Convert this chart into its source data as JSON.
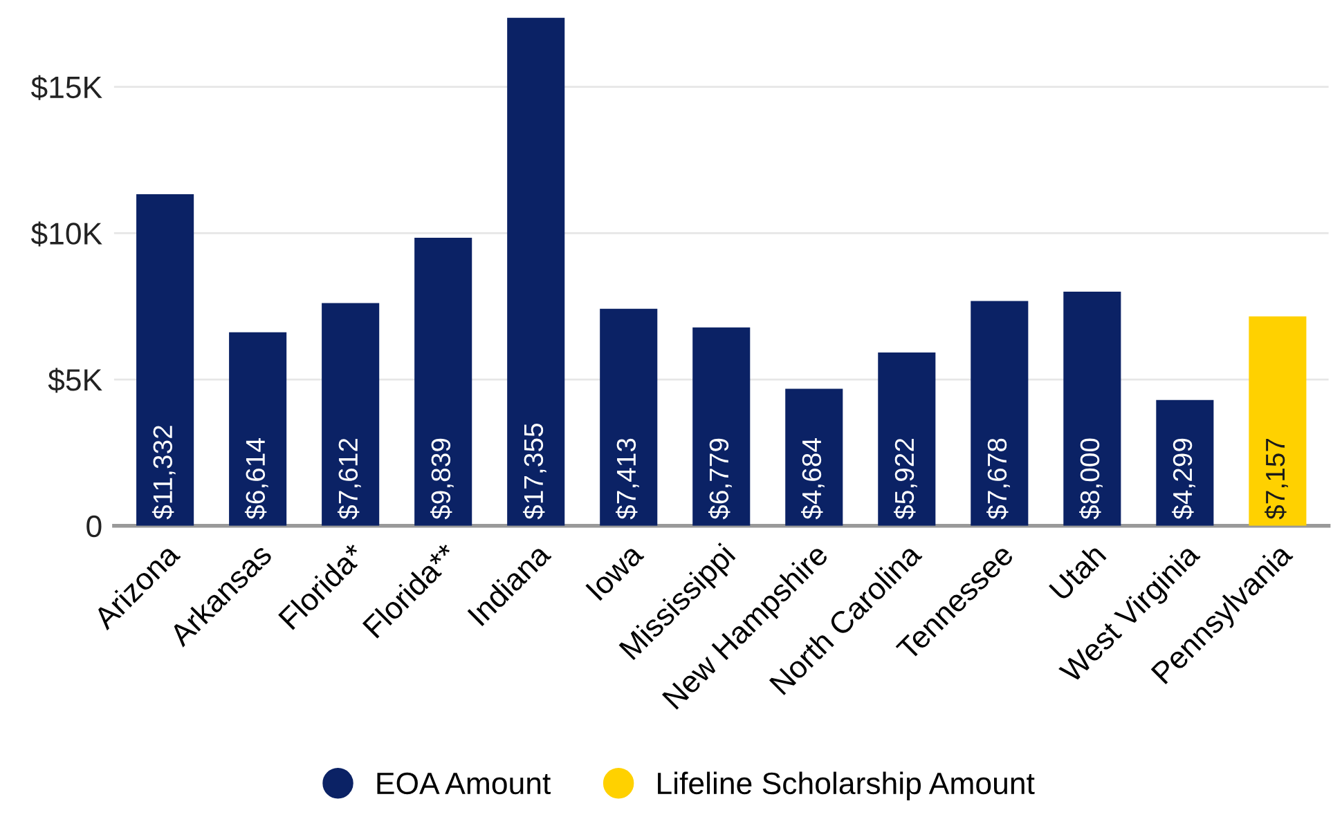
{
  "chart_data": {
    "type": "bar",
    "categories": [
      "Arizona",
      "Arkansas",
      "Florida*",
      "Florida**",
      "Indiana",
      "Iowa",
      "Mississippi",
      "New Hampshire",
      "North Carolina",
      "Tennessee",
      "Utah",
      "West Virginia",
      "Pennsylvania"
    ],
    "series": [
      {
        "name": "EOA Amount",
        "color": "#0b2265",
        "values": [
          11332,
          6614,
          7612,
          9839,
          17355,
          7413,
          6779,
          4684,
          5922,
          7678,
          8000,
          4299,
          null
        ],
        "value_labels": [
          "$11,332",
          "$6,614",
          "$7,612",
          "$9,839",
          "$17,355",
          "$7,413",
          "$6,779",
          "$4,684",
          "$5,922",
          "$7,678",
          "$8,000",
          "$4,299",
          null
        ]
      },
      {
        "name": "Lifeline Scholarship Amount",
        "color": "#ffd100",
        "values": [
          null,
          null,
          null,
          null,
          null,
          null,
          null,
          null,
          null,
          null,
          null,
          null,
          7157
        ],
        "value_labels": [
          null,
          null,
          null,
          null,
          null,
          null,
          null,
          null,
          null,
          null,
          null,
          null,
          "$7,157"
        ]
      }
    ],
    "ylim": [
      0,
      17400
    ],
    "yticks": [
      0,
      {
        "value": 5000,
        "label": "$5K"
      },
      {
        "value": 10000,
        "label": "$10K"
      },
      {
        "value": 15000,
        "label": "$15K"
      }
    ],
    "grid": "y",
    "legend": "bottom"
  }
}
